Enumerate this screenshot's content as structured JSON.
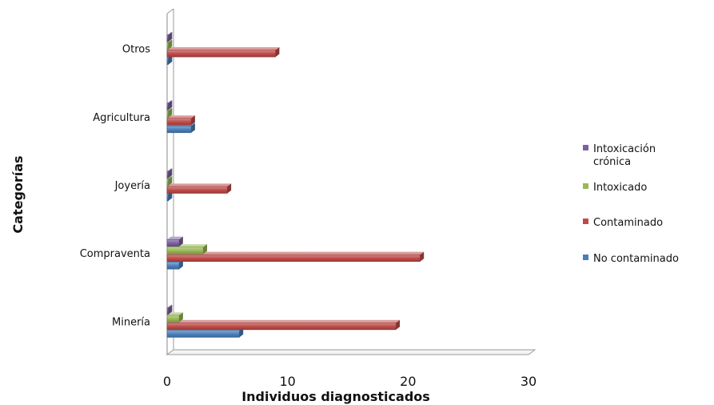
{
  "chart_data": {
    "type": "bar",
    "orientation": "horizontal",
    "style": "3d",
    "title": "",
    "xlabel": "Individuos diagnosticados",
    "ylabel": "Categorías",
    "xlim": [
      0,
      30
    ],
    "xticks": [
      "0",
      "10",
      "20",
      "30"
    ],
    "grid": false,
    "legend_position": "right",
    "categories": [
      "Minería",
      "Compraventa",
      "Joyería",
      "Agricultura",
      "Otros"
    ],
    "series": [
      {
        "name": "No contaminado",
        "color": "#4a7ebb",
        "values": [
          6,
          1,
          0,
          2,
          0
        ]
      },
      {
        "name": "Contaminado",
        "color": "#be4b48",
        "values": [
          19,
          21,
          5,
          2,
          9
        ]
      },
      {
        "name": "Intoxicado",
        "color": "#98b954",
        "values": [
          1,
          3,
          0,
          0,
          0
        ]
      },
      {
        "name": "Intoxicación crónica",
        "color": "#7d60a0",
        "values": [
          0,
          1,
          0,
          0,
          0
        ]
      }
    ],
    "legend_order": [
      3,
      2,
      1,
      0
    ],
    "legend_lines": [
      [
        "Intoxicación",
        "crónica"
      ],
      [
        "Intoxicado"
      ],
      [
        "Contaminado"
      ],
      [
        "No contaminado"
      ]
    ]
  }
}
